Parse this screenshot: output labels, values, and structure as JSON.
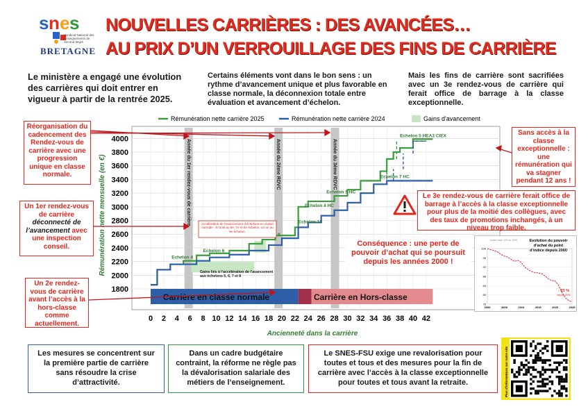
{
  "header": {
    "logo_text": "snes",
    "logo_sub": "Syndicat National des Enseignements de Second degré",
    "logo_region": "BRETAGNE",
    "title_line1": "NOUVELLES CARRIÈRES : DES AVANCÉES…",
    "title_line2": "AU PRIX D’UN VERROUILLAGE DES FINS DE CARRIÈRE"
  },
  "intro": {
    "col1": "Le ministère a engagé une évolution des carrières qui doit entrer en vigueur à partir de la rentrée 2025.",
    "col2": "Certains éléments vont dans le bon sens : un rythme d’avancement unique et plus favorable en classe normale, la déconnexion totale entre évaluation et avancement d’échelon.",
    "col3": "Mais les fins de carrière sont sacrifiées avec un 3e rendez-vous de carrière qui ferait office de barrage à la classe exceptionnelle."
  },
  "callouts": {
    "c1": "Réorganisation du cadencement des Rendez-vous de carrière avec une progression unique en classe normale.",
    "c2_a": "Un 1er rendez-vous de carrière",
    "c2_b": "déconnecté de l’avancement",
    "c2_c": "avec une inspection conseil.",
    "c3": "Un 2e rendez-vous de carrière avant l’accès à la hors-classe comme actuellement.",
    "c4": "Sans accès à la classe exceptionnelle : une rémunération qui va stagner pendant 12 ans !",
    "c5": "Le 3e rendez-vous de carrière ferait office de barrage à l’accès à la classe exceptionnelle pour plus de la moitié des collègues, avec des taux de promotions inchangés, à un niveau trop faible.",
    "c6": "Conséquence : une perte de pouvoir d’achat qui se poursuit depuis les années 2000 !"
  },
  "bottom": {
    "b1": "Les mesures se concentrent sur la première partie de carrière sans résoudre la crise d’attractivité.",
    "b2": "Dans un cadre budgétaire contraint, la réforme ne règle pas la dévalorisation salariale des métiers de l’enseignement.",
    "b3": "Le SNES-FSU exige une revalorisation pour toutes et tous et des mesures pour la fin de carrière avec l’accès à la classe exceptionnelle pour toutes et tous avant la retraite.",
    "qr_label": "Plus d'informations sur notre site"
  },
  "colors": {
    "red": "#e0261d",
    "green": "#3c9a3f",
    "blue": "#2f5fa8",
    "gain": "#c9e6c4",
    "normal_band": "#2c5fa8",
    "hors_band": "#e38a8e"
  },
  "chart_data": {
    "type": "line",
    "xlabel": "Ancienneté dans la carrière",
    "ylabel": "Rémunération nette mensuelle (en €)",
    "xlim": [
      -1,
      44
    ],
    "ylim": [
      1700,
      4100
    ],
    "xticks": [
      0,
      2,
      4,
      6,
      8,
      10,
      12,
      14,
      16,
      18,
      20,
      22,
      24,
      26,
      28,
      30,
      32,
      34,
      36,
      38,
      40,
      42
    ],
    "yticks": [
      1800,
      2000,
      2200,
      2400,
      2600,
      2800,
      3000,
      3200,
      3400,
      3600,
      3800,
      4000
    ],
    "legend": [
      "Rémunération nette carrière 2025",
      "Rémunération nette carrière 2024",
      "Gains d'avancement"
    ],
    "series": [
      {
        "name": "Rémunération nette carrière 2025",
        "points": [
          [
            0,
            1860
          ],
          [
            1,
            2080
          ],
          [
            3,
            2160
          ],
          [
            5,
            2210
          ],
          [
            7,
            2290
          ],
          [
            9,
            2320
          ],
          [
            12,
            2360
          ],
          [
            15,
            2460
          ],
          [
            17,
            2520
          ],
          [
            19,
            2580
          ],
          [
            22,
            2700
          ],
          [
            22.5,
            3000
          ],
          [
            24,
            3080
          ],
          [
            28,
            3160
          ],
          [
            30,
            3250
          ],
          [
            32,
            3380
          ],
          [
            35,
            3520
          ],
          [
            36,
            3700
          ],
          [
            37,
            3800
          ],
          [
            38,
            3860
          ],
          [
            40,
            3990
          ],
          [
            43,
            3990
          ]
        ]
      },
      {
        "name": "Rémunération nette carrière 2024",
        "points": [
          [
            0,
            1860
          ],
          [
            1,
            2080
          ],
          [
            3,
            2160
          ],
          [
            7,
            2210
          ],
          [
            9,
            2260
          ],
          [
            12,
            2300
          ],
          [
            15,
            2360
          ],
          [
            18,
            2440
          ],
          [
            20,
            2540
          ],
          [
            22.5,
            2700
          ],
          [
            24,
            2770
          ],
          [
            26,
            2870
          ],
          [
            28,
            2950
          ],
          [
            30,
            3060
          ],
          [
            32,
            3200
          ],
          [
            34,
            3330
          ],
          [
            36,
            3380
          ],
          [
            40,
            3380
          ],
          [
            43,
            3380
          ]
        ]
      }
    ],
    "echelon_labels": [
      "Echelon 4",
      "Echelon 6",
      "Echelon 9",
      "Echelon 10",
      "Echelon 4 HC",
      "Echelon 5 HC",
      "Echelon 7 HC",
      "Echelon 5 HEA3 CIEX"
    ],
    "rdv_labels": [
      "Année du 1er rendez-vous de carrière",
      "Année du 2ème RDVC",
      "Année du 3ème RDVC"
    ],
    "band_labels": [
      "Carrière en classe normale",
      "Carrière en Hors-classe"
    ],
    "gain_note": "Gains liés à l’accélération de l’avancement aux échelons 5, 6, 7 et 8",
    "accel_note": "Accélération de l’avancement d’échelons en classe normale : 6 mois au 6e, 7e et 8e échelon, un an au 9e échelon."
  },
  "inset_chart": {
    "title": "Evolution du pouvoir d’achat du point d’indice depuis 2000",
    "subtitle": "indice base 100 en 2000",
    "xticks": [
      "2000",
      "2005",
      "2010",
      "2015",
      "2020",
      "2025"
    ],
    "yticks": [
      "76",
      "80",
      "84",
      "88",
      "92",
      "96",
      "100"
    ],
    "annotation": "- 23 %",
    "annotation_sub": "depuis 2000",
    "values": [
      [
        2000,
        100
      ],
      [
        2001,
        99.5
      ],
      [
        2002,
        99.2
      ],
      [
        2003,
        98.6
      ],
      [
        2004,
        97.5
      ],
      [
        2005,
        96.8
      ],
      [
        2006,
        96.3
      ],
      [
        2007,
        95.4
      ],
      [
        2008,
        94.5
      ],
      [
        2009,
        94.9
      ],
      [
        2010,
        94.0
      ],
      [
        2011,
        92.1
      ],
      [
        2012,
        91.0
      ],
      [
        2013,
        90.1
      ],
      [
        2014,
        89.7
      ],
      [
        2015,
        89.5
      ],
      [
        2016,
        89.2
      ],
      [
        2017,
        88.3
      ],
      [
        2018,
        86.9
      ],
      [
        2019,
        86.2
      ],
      [
        2020,
        86.0
      ],
      [
        2021,
        84.2
      ],
      [
        2022,
        81.2
      ],
      [
        2023,
        78.8
      ],
      [
        2024,
        77.6
      ],
      [
        2025,
        77.0
      ]
    ]
  }
}
